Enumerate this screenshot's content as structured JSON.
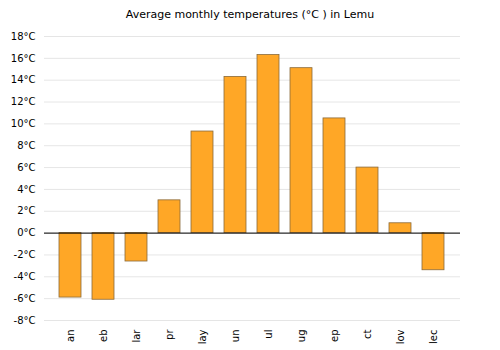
{
  "chart_data": {
    "type": "bar",
    "title": "Average monthly temperatures (°C ) in Lemu",
    "categories": [
      "an",
      "eb",
      "lar",
      "pr",
      "lay",
      "un",
      "ul",
      "ug",
      "ep",
      "ct",
      "lov",
      "lec"
    ],
    "values": [
      -5.9,
      -6.1,
      -2.6,
      3.0,
      9.3,
      14.3,
      16.3,
      15.1,
      10.5,
      6.0,
      0.9,
      -3.4
    ],
    "color": "#ffa726",
    "ylim": [
      -8,
      18
    ],
    "yticks": [
      {
        "value": -8,
        "label": "-8°C"
      },
      {
        "value": -6,
        "label": "-6°C"
      },
      {
        "value": -4,
        "label": "-4°C"
      },
      {
        "value": -2,
        "label": "-2°C"
      },
      {
        "value": 0,
        "label": "0°C"
      },
      {
        "value": 2,
        "label": "2°C"
      },
      {
        "value": 4,
        "label": "4°C"
      },
      {
        "value": 6,
        "label": "6°C"
      },
      {
        "value": 8,
        "label": "8°C"
      },
      {
        "value": 10,
        "label": "10°C"
      },
      {
        "value": 12,
        "label": "12°C"
      },
      {
        "value": 14,
        "label": "14°C"
      },
      {
        "value": 16,
        "label": "16°C"
      },
      {
        "value": 18,
        "label": "18°C"
      }
    ],
    "grid": true
  }
}
